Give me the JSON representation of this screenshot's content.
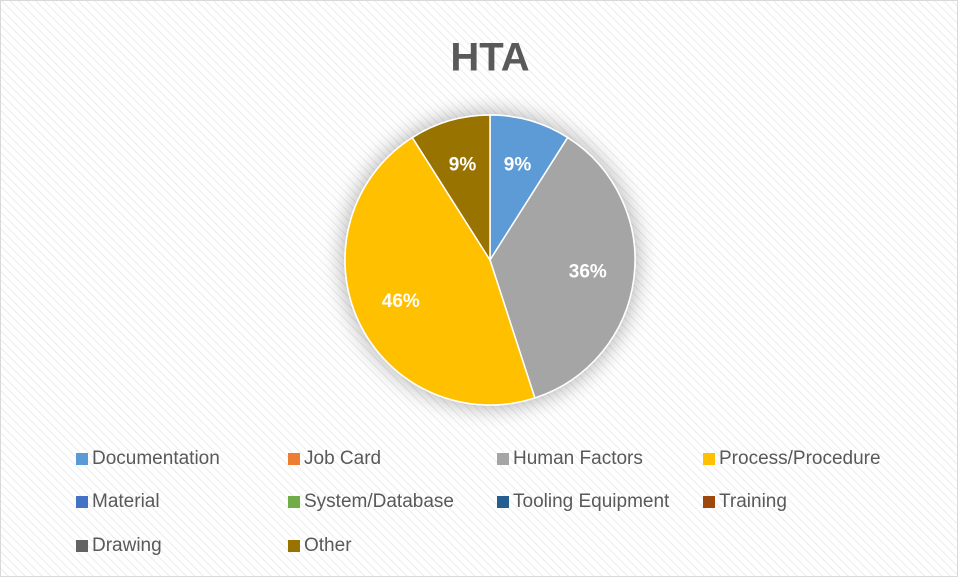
{
  "chart_data": {
    "type": "pie",
    "title": "HTA",
    "categories": [
      "Documentation",
      "Job Card",
      "Human Factors",
      "Process/Procedure",
      "Material",
      "System/Database",
      "Tooling Equipment",
      "Training",
      "Drawing",
      "Other"
    ],
    "values": [
      9,
      0,
      36,
      46,
      0,
      0,
      0,
      0,
      0,
      9
    ],
    "value_labels": [
      "9%",
      null,
      "36%",
      "46%",
      null,
      null,
      null,
      null,
      null,
      "9%"
    ],
    "colors": [
      "#5b9bd5",
      "#ed7d31",
      "#a5a5a5",
      "#ffc000",
      "#4472c4",
      "#70ad47",
      "#255e91",
      "#9e480e",
      "#636363",
      "#997300"
    ],
    "legend": "bottom"
  }
}
